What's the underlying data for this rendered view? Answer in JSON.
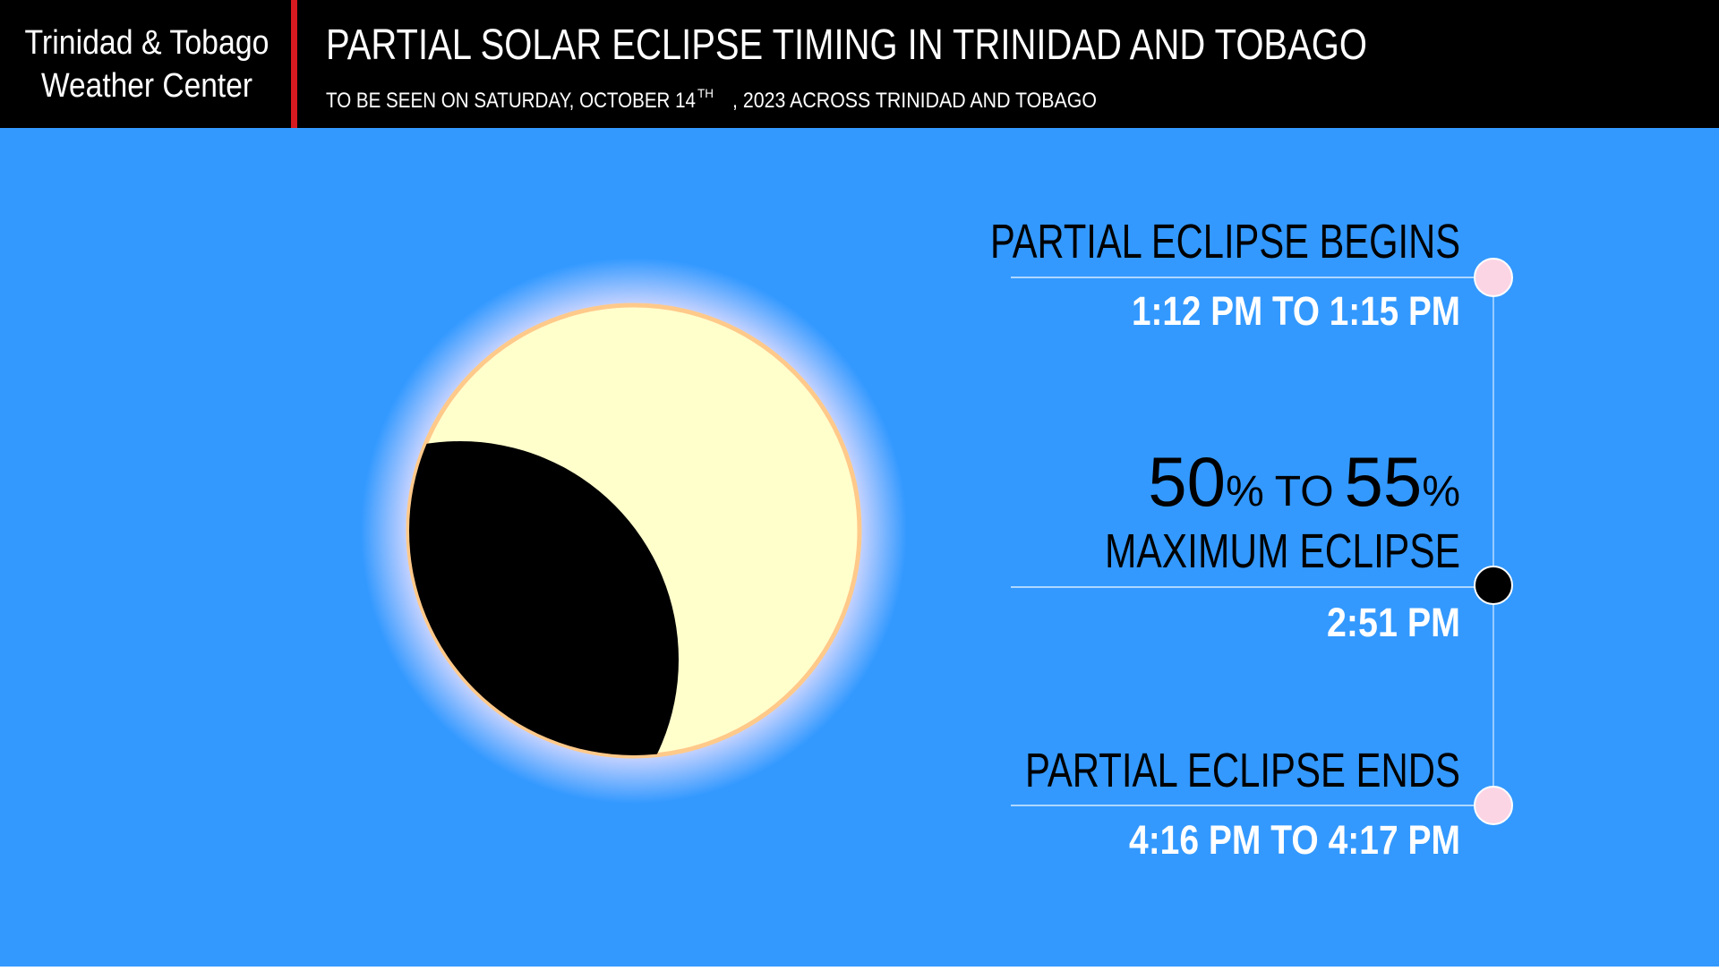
{
  "header": {
    "brand": [
      "Trinidad & Tobago",
      "Weather Center"
    ],
    "title": "PARTIAL SOLAR ECLIPSE TIMING IN TRINIDAD AND TOBAGO",
    "subtitle": {
      "before": "TO BE SEEN ON SATURDAY, OCTOBER 14",
      "superscript": "TH",
      "after": ", 2023 ACROSS TRINIDAD AND TOBAGO"
    }
  },
  "timeline": {
    "begins": {
      "label": "PARTIAL ECLIPSE BEGINS",
      "time": "1:12 PM TO 1:15 PM"
    },
    "maximum": {
      "magnitude": {
        "low": 50,
        "unit": "%",
        "joiner": "TO",
        "high": 55
      },
      "label": "MAXIMUM ECLIPSE",
      "time": "2:51 PM"
    },
    "ends": {
      "label": "PARTIAL ECLIPSE ENDS",
      "time": "4:16 PM TO 4:17 PM"
    }
  }
}
